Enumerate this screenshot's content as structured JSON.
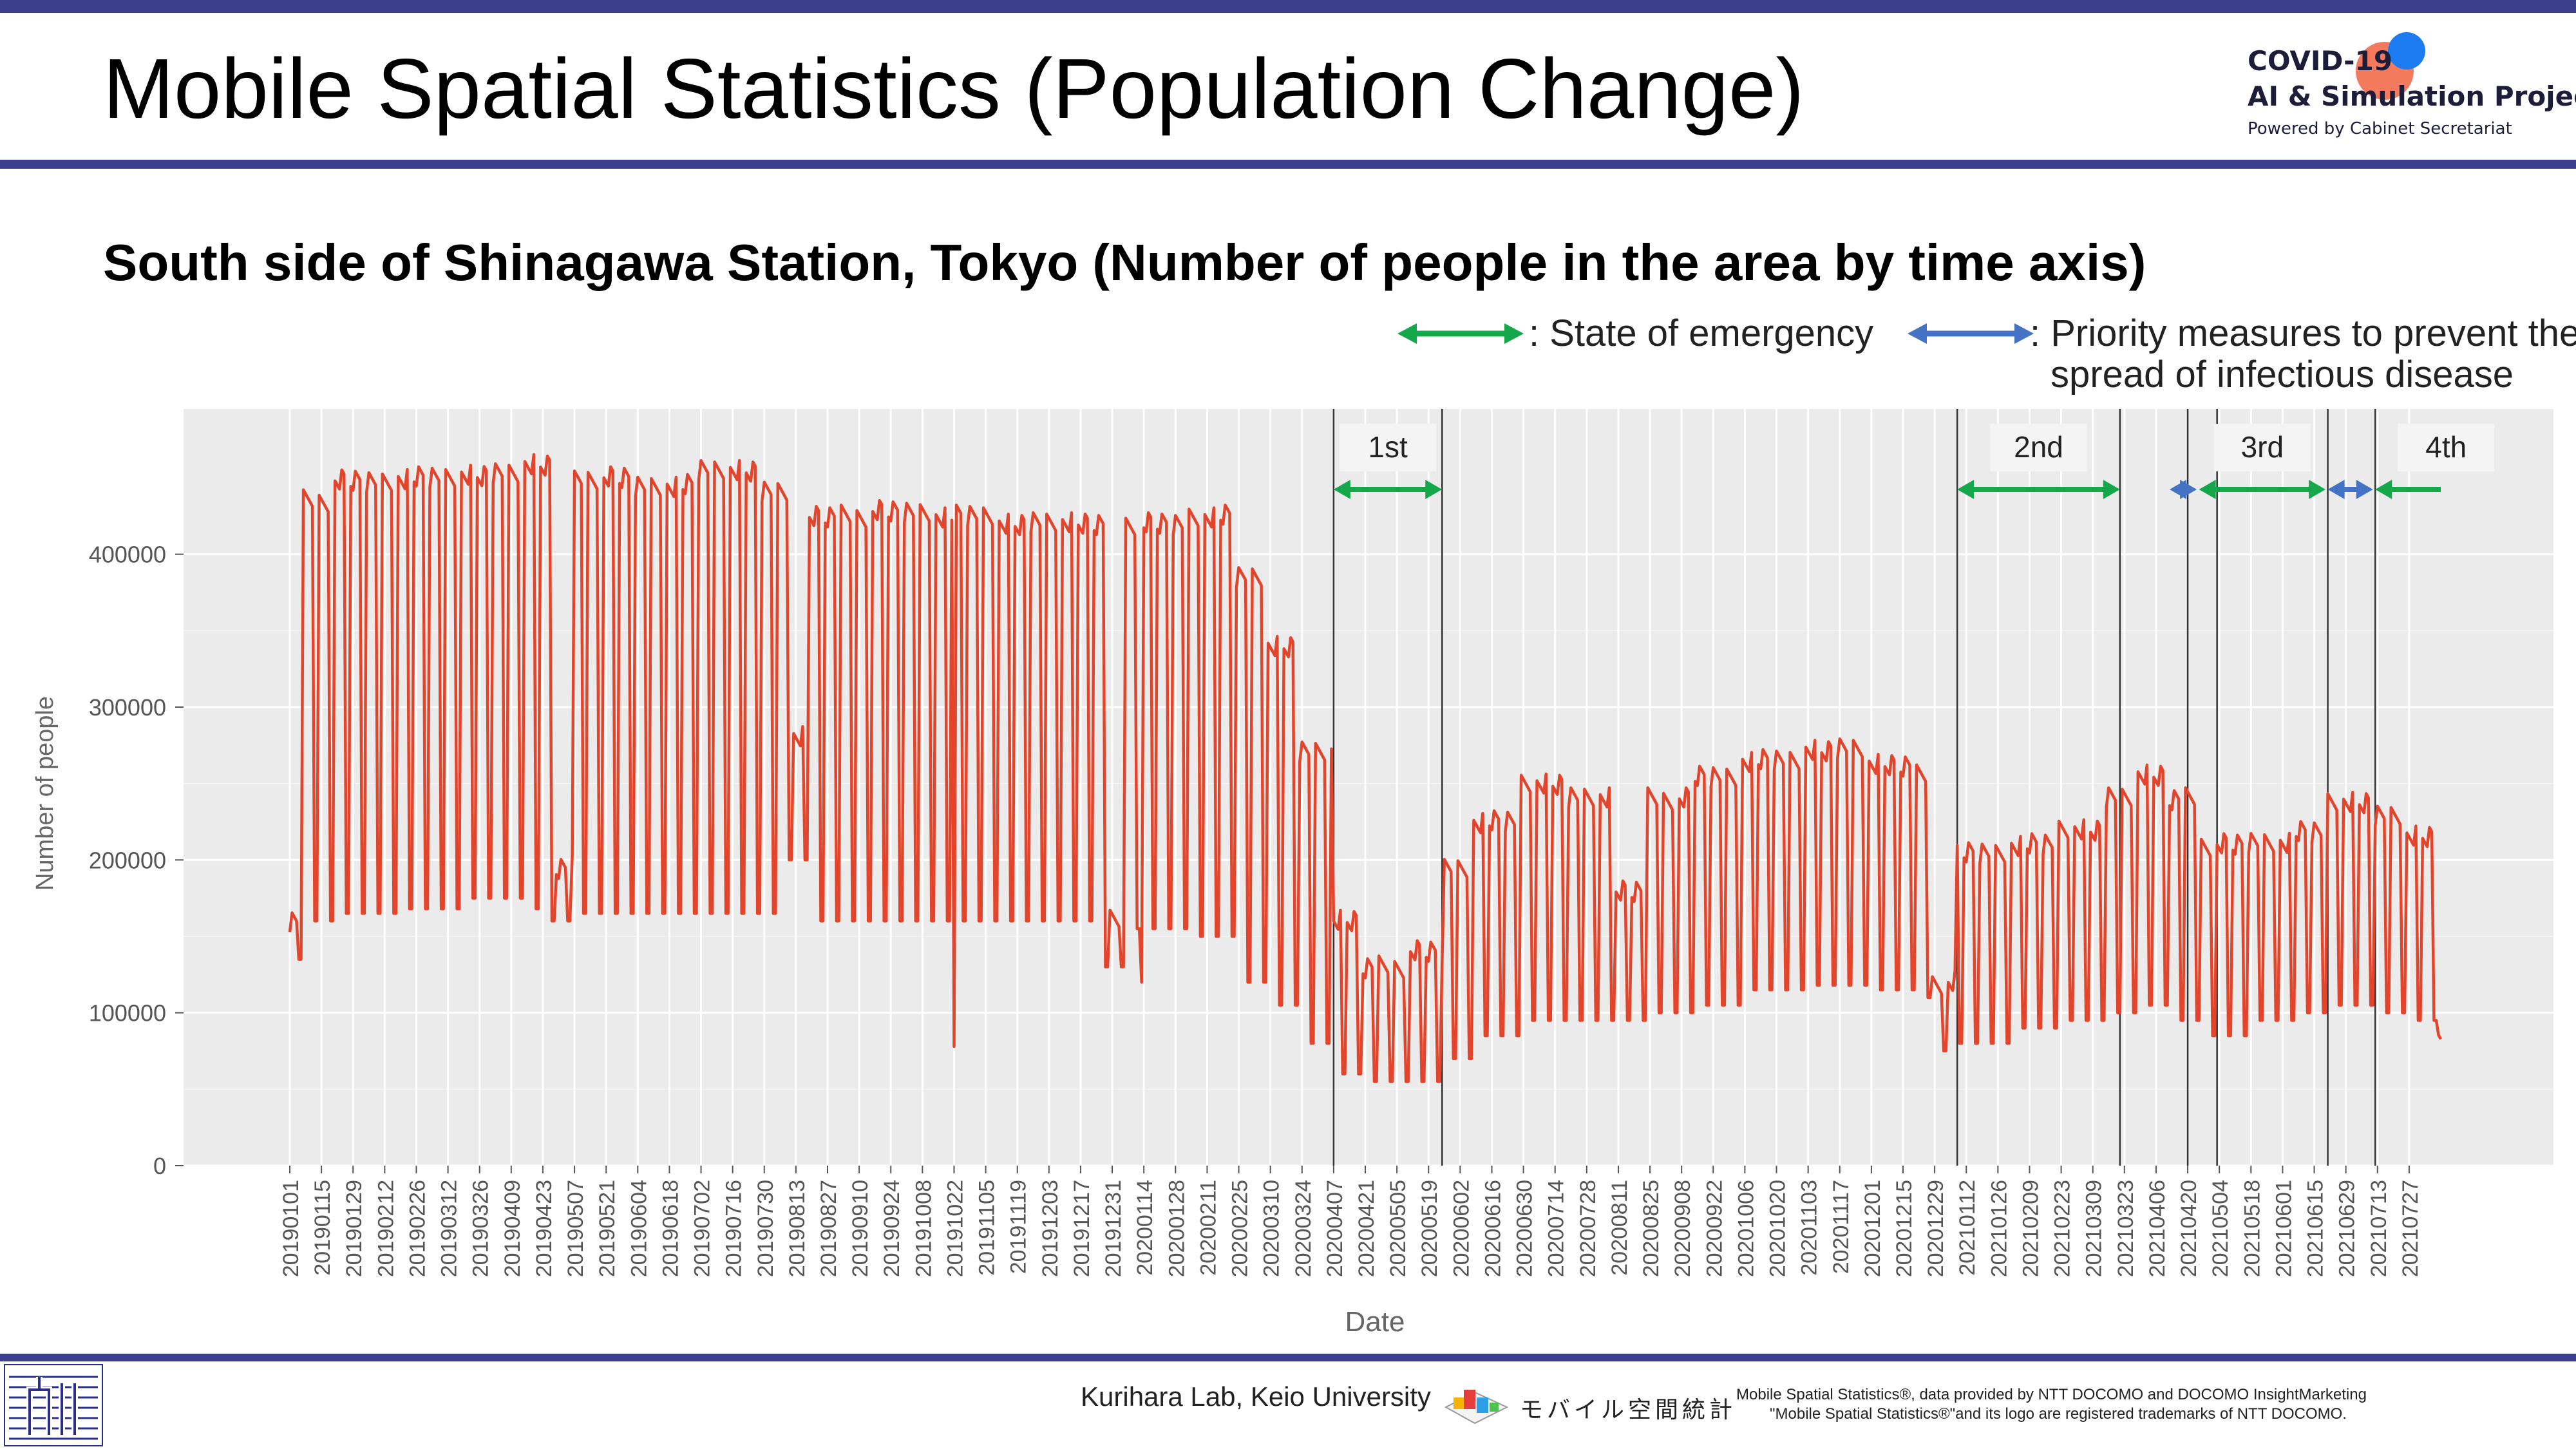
{
  "header": {
    "title": "Mobile Spatial Statistics (Population Change)",
    "subtitle": "South side of Shinagawa Station, Tokyo (Number of people in the area by time axis)"
  },
  "logo": {
    "line1": "COVID-19",
    "line2": "AI & Simulation Project",
    "line3": "Powered by Cabinet Secretariat"
  },
  "legend": {
    "emergency_label": ": State of emergency",
    "priority_label_1": ": Priority measures to prevent the",
    "priority_label_2": "spread of infectious disease"
  },
  "footer": {
    "lab": "Kurihara Lab, Keio University",
    "brand": "モバイル空間統計",
    "credit_line1": "Mobile Spatial Statistics®, data provided by NTT DOCOMO and DOCOMO InsightMarketing",
    "credit_line2": "\"Mobile Spatial Statistics®\"and its logo are registered trademarks of NTT DOCOMO."
  },
  "colors": {
    "series": "#e2452b",
    "emergency_arrow": "#14a84b",
    "priority_arrow": "#4472c4",
    "panel_bg": "#ebebeb",
    "header_bar": "#3b3f8c"
  },
  "chart_data": {
    "type": "line",
    "xlabel": "Date",
    "ylabel": "Number of people",
    "ylim": [
      0,
      490000
    ],
    "yticks": [
      0,
      100000,
      200000,
      300000,
      400000
    ],
    "x_start": "2019-01-01",
    "x_end": "2021-08-10",
    "x_ticks": [
      "20190101",
      "20190115",
      "20190129",
      "20190212",
      "20190226",
      "20190312",
      "20190326",
      "20190409",
      "20190423",
      "20190507",
      "20190521",
      "20190604",
      "20190618",
      "20190702",
      "20190716",
      "20190730",
      "20190813",
      "20190827",
      "20190910",
      "20190924",
      "20191008",
      "20191022",
      "20191105",
      "20191119",
      "20191203",
      "20191217",
      "20191231",
      "20200114",
      "20200128",
      "20200211",
      "20200225",
      "20200310",
      "20200324",
      "20200407",
      "20200421",
      "20200505",
      "20200519",
      "20200602",
      "20200616",
      "20200630",
      "20200714",
      "20200728",
      "20200811",
      "20200825",
      "20200908",
      "20200922",
      "20201006",
      "20201020",
      "20201103",
      "20201117",
      "20201201",
      "20201215",
      "20201229",
      "20210112",
      "20210126",
      "20210209",
      "20210223",
      "20210309",
      "20210323",
      "20210406",
      "20210420",
      "20210504",
      "20210518",
      "20210601",
      "20210615",
      "20210629",
      "20210713",
      "20210727"
    ],
    "period_lines": [
      "2020-04-07",
      "2020-05-25",
      "2021-01-08",
      "2021-03-21",
      "2021-04-20",
      "2021-05-03",
      "2021-06-21",
      "2021-07-12"
    ],
    "emergency_periods": [
      {
        "label": "1st",
        "start": "2020-04-07",
        "end": "2020-05-25"
      },
      {
        "label": "2nd",
        "start": "2021-01-08",
        "end": "2021-03-21"
      },
      {
        "label": "3rd",
        "start": "2021-04-25",
        "end": "2021-06-20"
      },
      {
        "label": "4th",
        "start": "2021-07-12",
        "end": "2021-08-10"
      }
    ],
    "priority_periods": [
      {
        "start": "2021-04-12",
        "end": "2021-04-24"
      },
      {
        "start": "2021-06-21",
        "end": "2021-07-11"
      }
    ],
    "weekly_levels": [
      {
        "from": "2019-01-01",
        "weekday": 160000,
        "weekend": 135000
      },
      {
        "from": "2019-01-07",
        "weekday": 435000,
        "weekend": 160000
      },
      {
        "from": "2019-01-21",
        "weekday": 448000,
        "weekend": 165000
      },
      {
        "from": "2019-02-18",
        "weekday": 450000,
        "weekend": 168000
      },
      {
        "from": "2019-03-18",
        "weekday": 452000,
        "weekend": 175000
      },
      {
        "from": "2019-04-15",
        "weekday": 458000,
        "weekend": 168000
      },
      {
        "from": "2019-04-27",
        "weekday": 195000,
        "weekend": 160000
      },
      {
        "from": "2019-05-07",
        "weekday": 450000,
        "weekend": 165000
      },
      {
        "from": "2019-06-03",
        "weekday": 445000,
        "weekend": 165000
      },
      {
        "from": "2019-07-01",
        "weekday": 455000,
        "weekend": 165000
      },
      {
        "from": "2019-07-29",
        "weekday": 440000,
        "weekend": 165000
      },
      {
        "from": "2019-08-10",
        "weekday": 280000,
        "weekend": 200000
      },
      {
        "from": "2019-08-19",
        "weekday": 425000,
        "weekend": 160000
      },
      {
        "from": "2019-09-16",
        "weekday": 428000,
        "weekend": 160000
      },
      {
        "from": "2019-10-14",
        "weekday": 425000,
        "weekend": 160000
      },
      {
        "from": "2019-11-11",
        "weekday": 420000,
        "weekend": 160000
      },
      {
        "from": "2019-12-09",
        "weekday": 420000,
        "weekend": 160000
      },
      {
        "from": "2019-12-28",
        "weekday": 160000,
        "weekend": 130000
      },
      {
        "from": "2020-01-06",
        "weekday": 420000,
        "weekend": 155000
      },
      {
        "from": "2020-02-03",
        "weekday": 425000,
        "weekend": 150000
      },
      {
        "from": "2020-02-24",
        "weekday": 385000,
        "weekend": 120000
      },
      {
        "from": "2020-03-09",
        "weekday": 340000,
        "weekend": 105000
      },
      {
        "from": "2020-03-23",
        "weekday": 270000,
        "weekend": 80000
      },
      {
        "from": "2020-04-07",
        "weekday": 160000,
        "weekend": 60000
      },
      {
        "from": "2020-04-20",
        "weekday": 130000,
        "weekend": 55000
      },
      {
        "from": "2020-05-11",
        "weekday": 140000,
        "weekend": 55000
      },
      {
        "from": "2020-05-26",
        "weekday": 195000,
        "weekend": 70000
      },
      {
        "from": "2020-06-08",
        "weekday": 225000,
        "weekend": 85000
      },
      {
        "from": "2020-06-29",
        "weekday": 250000,
        "weekend": 95000
      },
      {
        "from": "2020-07-20",
        "weekday": 240000,
        "weekend": 95000
      },
      {
        "from": "2020-08-10",
        "weekday": 180000,
        "weekend": 95000
      },
      {
        "from": "2020-08-24",
        "weekday": 240000,
        "weekend": 100000
      },
      {
        "from": "2020-09-14",
        "weekday": 255000,
        "weekend": 105000
      },
      {
        "from": "2020-10-05",
        "weekday": 265000,
        "weekend": 115000
      },
      {
        "from": "2020-11-02",
        "weekday": 272000,
        "weekend": 118000
      },
      {
        "from": "2020-11-30",
        "weekday": 262000,
        "weekend": 115000
      },
      {
        "from": "2020-12-21",
        "weekday": 255000,
        "weekend": 110000
      },
      {
        "from": "2020-12-28",
        "weekday": 120000,
        "weekend": 75000
      },
      {
        "from": "2021-01-08",
        "weekday": 205000,
        "weekend": 80000
      },
      {
        "from": "2021-02-01",
        "weekday": 210000,
        "weekend": 90000
      },
      {
        "from": "2021-02-22",
        "weekday": 220000,
        "weekend": 95000
      },
      {
        "from": "2021-03-15",
        "weekday": 240000,
        "weekend": 100000
      },
      {
        "from": "2021-03-29",
        "weekday": 255000,
        "weekend": 105000
      },
      {
        "from": "2021-04-12",
        "weekday": 240000,
        "weekend": 95000
      },
      {
        "from": "2021-04-26",
        "weekday": 210000,
        "weekend": 85000
      },
      {
        "from": "2021-05-17",
        "weekday": 212000,
        "weekend": 95000
      },
      {
        "from": "2021-06-07",
        "weekday": 218000,
        "weekend": 100000
      },
      {
        "from": "2021-06-21",
        "weekday": 238000,
        "weekend": 105000
      },
      {
        "from": "2021-07-12",
        "weekday": 228000,
        "weekend": 100000
      },
      {
        "from": "2021-07-26",
        "weekday": 215000,
        "weekend": 95000
      },
      {
        "from": "2021-08-09",
        "weekday": 90000,
        "weekend": 90000
      }
    ],
    "dips": [
      {
        "date": "2019-10-22",
        "value": 78000
      },
      {
        "date": "2020-01-13",
        "value": 120000
      }
    ]
  }
}
